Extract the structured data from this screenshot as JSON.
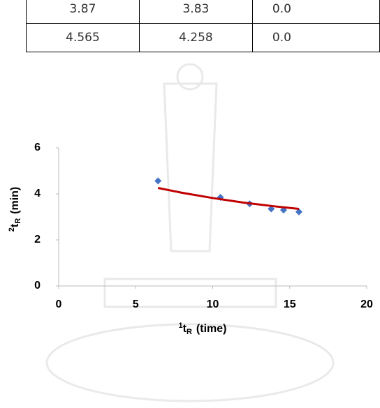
{
  "table": {
    "rows": [
      [
        "3.87",
        "3.83",
        "0.0"
      ],
      [
        "4.565",
        "4.258",
        "0.0"
      ]
    ]
  },
  "chart_data": {
    "type": "scatter",
    "x_label": {
      "sup": "1",
      "main": "t",
      "sub": "R",
      "rest": "(time)"
    },
    "y_label": {
      "sup": "2",
      "main": "t",
      "sub": "R",
      "rest": "(min)"
    },
    "series": [
      {
        "kind": "points",
        "color": "#4472c4",
        "x": [
          6.45,
          10.5,
          12.4,
          13.8,
          14.6,
          15.6
        ],
        "values": [
          4.565,
          3.85,
          3.57,
          3.35,
          3.3,
          3.22
        ]
      },
      {
        "kind": "line",
        "color": "#c00000",
        "x": [
          6.45,
          8,
          10,
          12,
          14,
          15.6
        ],
        "values": [
          4.258,
          4.05,
          3.82,
          3.62,
          3.46,
          3.35
        ]
      }
    ],
    "xlim": [
      0,
      20
    ],
    "xticks": [
      0,
      5,
      10,
      15,
      20
    ],
    "ylim": [
      0,
      6
    ],
    "yticks": [
      0,
      2,
      4,
      6
    ]
  }
}
